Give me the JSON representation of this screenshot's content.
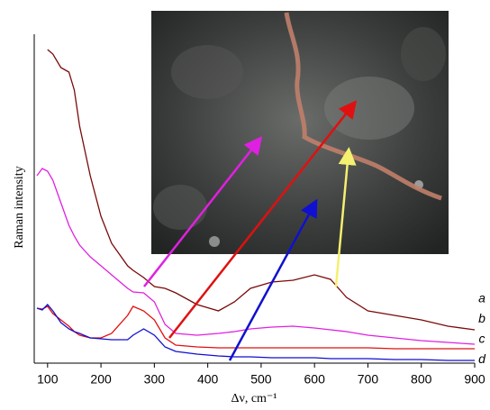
{
  "chart_data": {
    "type": "line",
    "x_label": "Δν, cm⁻¹",
    "y_label": "Raman intensity",
    "x": [
      80,
      90,
      100,
      110,
      125,
      140,
      150,
      160,
      180,
      200,
      220,
      250,
      260,
      280,
      300,
      320,
      340,
      380,
      420,
      450,
      480,
      520,
      560,
      600,
      630,
      660,
      700,
      750,
      800,
      850,
      900
    ],
    "series": [
      {
        "name": "a",
        "color": "#7a0a0a",
        "values": [
          null,
          null,
          348,
          343,
          328,
          323,
          303,
          263,
          208,
          163,
          133,
          108,
          103,
          95,
          85,
          83,
          78,
          65,
          58,
          68,
          83,
          90,
          92,
          98,
          93,
          73,
          58,
          53,
          48,
          41,
          37
        ]
      },
      {
        "name": "b",
        "color": "#e020e0",
        "values": [
          208,
          216,
          213,
          203,
          178,
          153,
          141,
          131,
          118,
          108,
          98,
          83,
          79,
          78,
          68,
          43,
          33,
          31,
          33,
          35,
          38,
          40,
          41,
          39,
          37,
          35,
          31,
          28,
          25,
          23,
          21
        ]
      },
      {
        "name": "c",
        "color": "#e01010",
        "values": [
          61,
          60,
          63,
          55,
          48,
          41,
          35,
          31,
          28,
          28,
          33,
          53,
          63,
          58,
          48,
          28,
          20,
          18,
          17,
          17,
          17,
          17,
          17,
          17,
          17,
          17,
          17,
          16,
          16,
          16,
          16
        ]
      },
      {
        "name": "d",
        "color": "#1010d0",
        "values": [
          61,
          59,
          65,
          58,
          45,
          38,
          35,
          33,
          28,
          27,
          26,
          26,
          31,
          38,
          31,
          18,
          13,
          10,
          8,
          7,
          7,
          6,
          6,
          6,
          5,
          5,
          5,
          4,
          4,
          3,
          3
        ]
      }
    ],
    "xlim": [
      75,
      900
    ],
    "ylim": [
      0,
      365
    ],
    "xticks": [
      100,
      200,
      300,
      400,
      500,
      600,
      700,
      800,
      900
    ]
  }
}
